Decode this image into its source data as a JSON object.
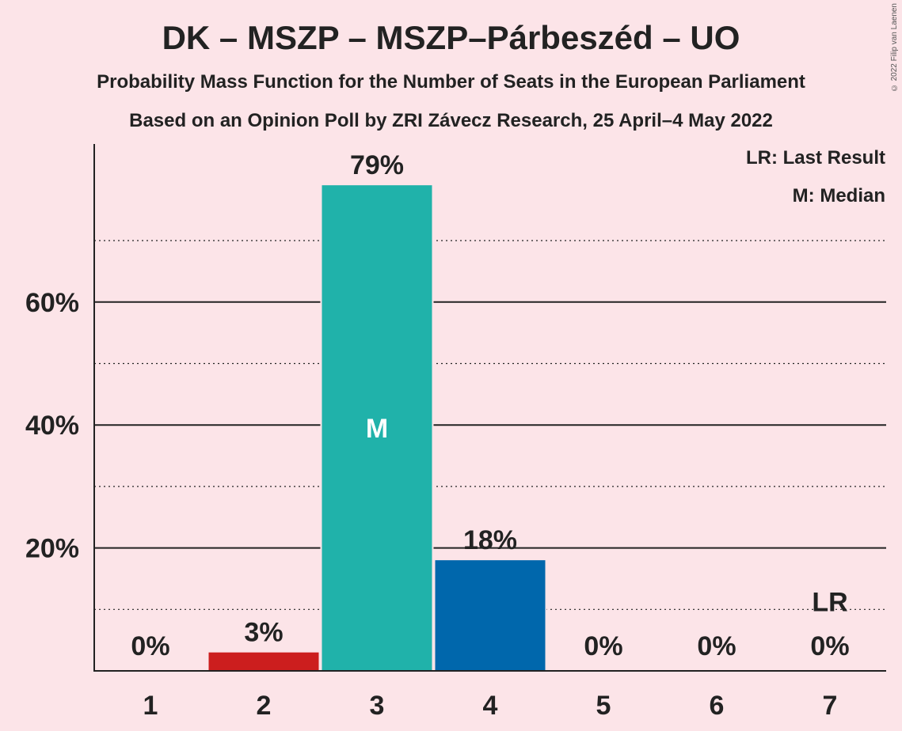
{
  "title": "DK – MSZP – MSZP–Párbeszéd – UO",
  "subtitle": "Probability Mass Function for the Number of Seats in the European Parliament",
  "subtitle2": "Based on an Opinion Poll by ZRI Závecz Research, 25 April–4 May 2022",
  "copyright": "© 2022 Filip van Laenen",
  "legend": {
    "last_result": "LR: Last Result",
    "median": "M: Median"
  },
  "colors": {
    "background": "#fce4e8",
    "default_bar": "#20b2aa",
    "seat2_bar": "#cc1e1e",
    "seat3_bar": "#20b2aa",
    "seat4_bar": "#0067ac"
  },
  "chart_data": {
    "type": "bar",
    "categories": [
      "1",
      "2",
      "3",
      "4",
      "5",
      "6",
      "7"
    ],
    "values": [
      0,
      3,
      79,
      18,
      0,
      0,
      0
    ],
    "value_labels": [
      "0%",
      "3%",
      "79%",
      "18%",
      "0%",
      "0%",
      "0%"
    ],
    "bar_colors": [
      "#20b2aa",
      "#cc1e1e",
      "#20b2aa",
      "#0067ac",
      "#20b2aa",
      "#20b2aa",
      "#20b2aa"
    ],
    "median_category": "3",
    "median_marker": "M",
    "last_result_category": "7",
    "last_result_marker": "LR",
    "ylim": [
      0,
      86
    ],
    "yticks": [
      20,
      40,
      60
    ],
    "ytick_labels": [
      "20%",
      "40%",
      "60%"
    ],
    "minor_gridlines": [
      10,
      30,
      50,
      70
    ],
    "grid": true
  }
}
